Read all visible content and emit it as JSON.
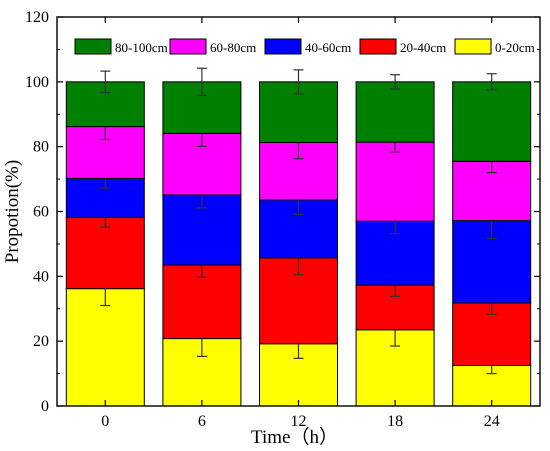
{
  "chart_data": {
    "type": "bar",
    "stacked": true,
    "title": "",
    "xlabel": "Time（h）",
    "ylabel": "Propotion(%)",
    "categories": [
      "0",
      "6",
      "12",
      "18",
      "24"
    ],
    "ylim": [
      0,
      120
    ],
    "yticks": [
      0,
      20,
      40,
      60,
      80,
      100,
      120
    ],
    "legend_position": "top",
    "series": [
      {
        "name": "0-20cm",
        "color": "#ffff00",
        "values": [
          36.2,
          20.8,
          19.2,
          23.5,
          12.5
        ],
        "errors": [
          5.2,
          5.5,
          4.5,
          5.0,
          2.5
        ]
      },
      {
        "name": "20-40cm",
        "color": "#ff0000",
        "values": [
          22.0,
          22.7,
          26.5,
          13.8,
          19.3
        ],
        "errors": [
          3.0,
          3.8,
          5.2,
          3.5,
          3.5
        ]
      },
      {
        "name": "40-60cm",
        "color": "#0000ff",
        "values": [
          12.0,
          21.6,
          17.9,
          19.7,
          25.4
        ],
        "errors": [
          3.0,
          4.0,
          4.5,
          3.8,
          5.5
        ]
      },
      {
        "name": "60-80cm",
        "color": "#ff00ff",
        "values": [
          16.0,
          19.0,
          17.7,
          24.4,
          18.3
        ],
        "errors": [
          4.0,
          4.0,
          5.0,
          3.0,
          3.5
        ]
      },
      {
        "name": "80-100cm",
        "color": "#008000",
        "values": [
          13.8,
          15.9,
          18.7,
          18.6,
          24.5
        ],
        "errors": [
          3.3,
          4.2,
          3.7,
          2.2,
          2.5
        ]
      }
    ],
    "legend_order": [
      "80-100cm",
      "60-80cm",
      "40-60cm",
      "20-40cm",
      "0-20cm"
    ]
  }
}
